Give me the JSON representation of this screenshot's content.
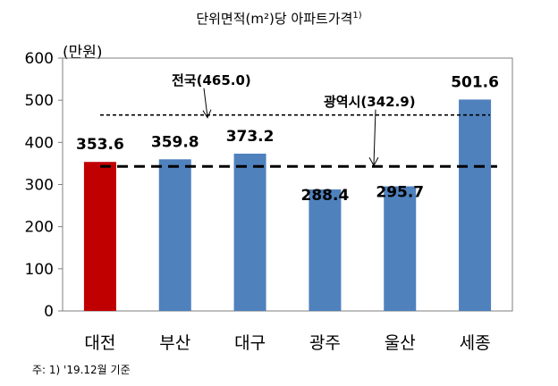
{
  "title": "단위면적(m²)당 아파트가격",
  "title_note_mark": "1)",
  "unit_label": "(만원)",
  "footnote": "주: 1) '19.12월 기준",
  "colors": {
    "highlight": "#c00000",
    "bar": "#4f81bd",
    "plot_border": "#7f7f7f"
  },
  "chart_data": {
    "type": "bar",
    "categories": [
      "대전",
      "부산",
      "대구",
      "광주",
      "울산",
      "세종"
    ],
    "values": [
      353.6,
      359.8,
      373.2,
      288.4,
      295.7,
      501.6
    ],
    "value_labels": [
      "353.6",
      "359.8",
      "373.2",
      "288.4",
      "295.7",
      "501.6"
    ],
    "highlight_index": 0,
    "ylim": [
      0,
      600
    ],
    "yticks": [
      0,
      100,
      200,
      300,
      400,
      500,
      600
    ],
    "xlabel": "",
    "ylabel": "(만원)",
    "reference_lines": [
      {
        "label": "전국(465.0)",
        "value": 465.0,
        "style": "short-dash"
      },
      {
        "label": "광역시(342.9)",
        "value": 342.9,
        "style": "long-dash"
      }
    ],
    "grid": false,
    "legend": "none"
  }
}
